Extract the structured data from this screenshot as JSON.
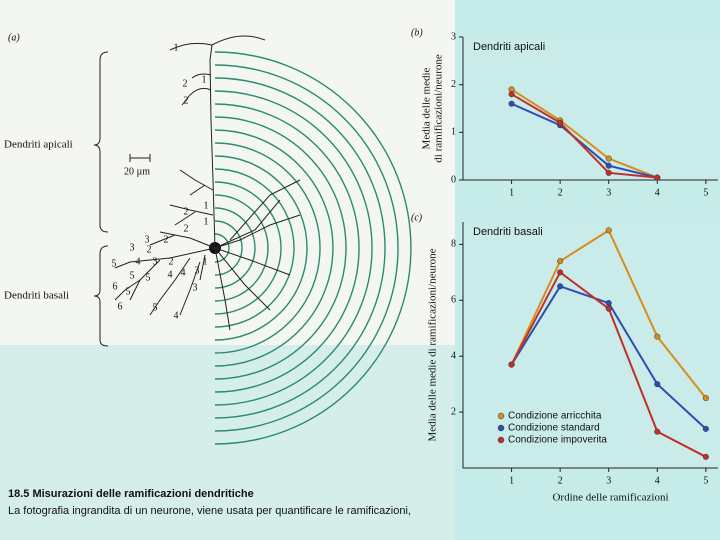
{
  "figure": {
    "panel_label": "(a)",
    "apical_label": "Dendriti apicali",
    "scale_label": "20 µm",
    "basal_label": "Dendriti basali",
    "branch_labels": [
      "1",
      "2",
      "1",
      "2",
      "1",
      "2",
      "1",
      "2",
      "3",
      "2",
      "3",
      "2",
      "5",
      "4",
      "3",
      "2",
      "5",
      "5",
      "4",
      "4",
      "3",
      "3",
      "6",
      "5",
      "1",
      "6",
      "5",
      "4"
    ],
    "caption_title": "18.5  Misurazioni delle ramificazioni dendritiche",
    "caption_text": "La fotografia ingrandita di un neurone, viene usata per quantificare le ramificazioni,"
  },
  "chart_data": [
    {
      "type": "line",
      "panel_label": "(b)",
      "title": "Dendriti apicali",
      "ylabel": [
        "Media delle medie",
        "di ramificazioni/neurone"
      ],
      "x": [
        1,
        2,
        3,
        4
      ],
      "xlim": [
        0,
        5.25
      ],
      "xticks": [
        1,
        2,
        3,
        4,
        5
      ],
      "ylim": [
        0,
        3
      ],
      "yticks": [
        0,
        1,
        2,
        3
      ],
      "series": [
        {
          "name": "Condizione arricchita",
          "color": "#d98c1a",
          "values": [
            1.9,
            1.25,
            0.45,
            0.05
          ]
        },
        {
          "name": "Condizione standard",
          "color": "#2a4fb0",
          "values": [
            1.6,
            1.15,
            0.3,
            0.05
          ]
        },
        {
          "name": "Condizione impoverita",
          "color": "#c0302a",
          "values": [
            1.8,
            1.2,
            0.15,
            0.05
          ]
        }
      ]
    },
    {
      "type": "line",
      "panel_label": "(c)",
      "title": "Dendriti basali",
      "ylabel": [
        "Media delle medie di ramificazioni/neurone"
      ],
      "xlabel": "Ordine delle ramificazioni",
      "x": [
        1,
        2,
        3,
        4,
        5
      ],
      "xlim": [
        0,
        5.25
      ],
      "xticks": [
        1,
        2,
        3,
        4,
        5
      ],
      "ylim": [
        0,
        8.8
      ],
      "yticks": [
        2,
        4,
        6,
        8
      ],
      "legend": "lower left",
      "series": [
        {
          "name": "Condizione arricchita",
          "color": "#d98c1a",
          "values": [
            3.7,
            7.4,
            8.5,
            4.7,
            2.5
          ]
        },
        {
          "name": "Condizione standard",
          "color": "#2a4fb0",
          "values": [
            3.7,
            6.5,
            5.9,
            3.0,
            1.4
          ]
        },
        {
          "name": "Condizione impoverita",
          "color": "#c0302a",
          "values": [
            3.7,
            7.0,
            5.7,
            1.3,
            0.4
          ]
        }
      ]
    }
  ]
}
